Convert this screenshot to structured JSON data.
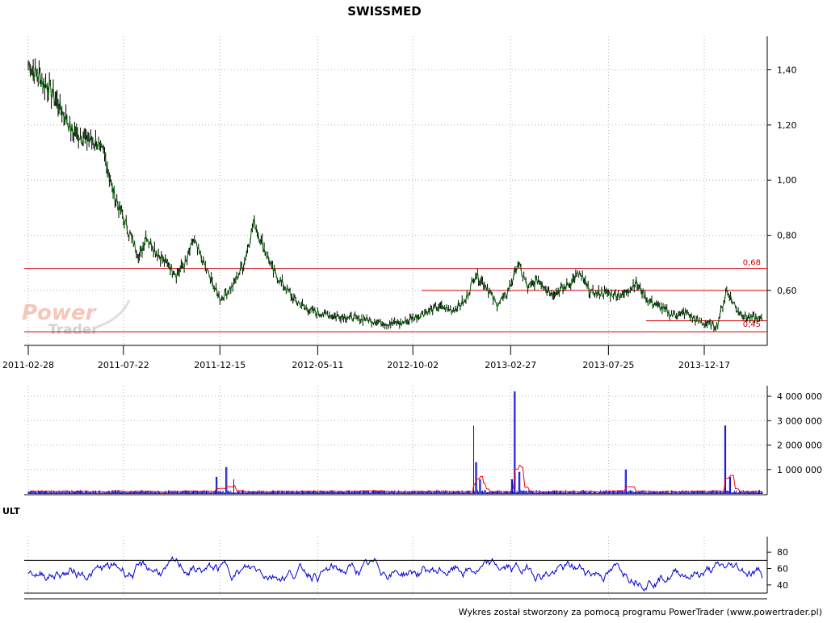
{
  "chart_data": [
    {
      "type": "candlestick",
      "panel": "price",
      "title": "SWISSMED",
      "x_ticks": [
        "2011-02-28",
        "2011-07-22",
        "2011-12-15",
        "2012-05-11",
        "2012-10-02",
        "2013-02-27",
        "2013-07-25",
        "2013-12-17"
      ],
      "y_ticks": [
        "1,40",
        "1,20",
        "1,00",
        "0,80",
        "0,60"
      ],
      "ylim": [
        0.43,
        1.46
      ],
      "grid": true,
      "close_series": [
        [
          "2011-02-28",
          1.42
        ],
        [
          "2011-03-15",
          1.38
        ],
        [
          "2011-04-01",
          1.33
        ],
        [
          "2011-04-20",
          1.25
        ],
        [
          "2011-05-05",
          1.18
        ],
        [
          "2011-05-25",
          1.15
        ],
        [
          "2011-06-10",
          1.14
        ],
        [
          "2011-06-25",
          1.08
        ],
        [
          "2011-07-05",
          0.97
        ],
        [
          "2011-07-22",
          0.86
        ],
        [
          "2011-08-05",
          0.78
        ],
        [
          "2011-08-15",
          0.72
        ],
        [
          "2011-08-25",
          0.8
        ],
        [
          "2011-09-10",
          0.74
        ],
        [
          "2011-09-25",
          0.7
        ],
        [
          "2011-10-10",
          0.66
        ],
        [
          "2011-10-25",
          0.7
        ],
        [
          "2011-11-05",
          0.78
        ],
        [
          "2011-11-20",
          0.7
        ],
        [
          "2011-12-05",
          0.62
        ],
        [
          "2011-12-15",
          0.57
        ],
        [
          "2012-01-05",
          0.62
        ],
        [
          "2012-01-20",
          0.7
        ],
        [
          "2012-02-05",
          0.85
        ],
        [
          "2012-02-20",
          0.75
        ],
        [
          "2012-03-05",
          0.67
        ],
        [
          "2012-03-20",
          0.62
        ],
        [
          "2012-04-05",
          0.57
        ],
        [
          "2012-04-25",
          0.53
        ],
        [
          "2012-05-11",
          0.52
        ],
        [
          "2012-06-05",
          0.51
        ],
        [
          "2012-07-05",
          0.5
        ],
        [
          "2012-08-05",
          0.49
        ],
        [
          "2012-08-25",
          0.48
        ],
        [
          "2012-09-15",
          0.48
        ],
        [
          "2012-10-02",
          0.5
        ],
        [
          "2012-10-20",
          0.52
        ],
        [
          "2012-11-10",
          0.54
        ],
        [
          "2012-12-01",
          0.53
        ],
        [
          "2012-12-20",
          0.56
        ],
        [
          "2013-01-05",
          0.66
        ],
        [
          "2013-01-20",
          0.62
        ],
        [
          "2013-02-05",
          0.55
        ],
        [
          "2013-02-20",
          0.58
        ],
        [
          "2013-02-27",
          0.62
        ],
        [
          "2013-03-10",
          0.7
        ],
        [
          "2013-03-25",
          0.61
        ],
        [
          "2013-04-10",
          0.64
        ],
        [
          "2013-04-30",
          0.59
        ],
        [
          "2013-05-20",
          0.61
        ],
        [
          "2013-06-10",
          0.66
        ],
        [
          "2013-06-30",
          0.59
        ],
        [
          "2013-07-25",
          0.59
        ],
        [
          "2013-08-15",
          0.58
        ],
        [
          "2013-09-05",
          0.63
        ],
        [
          "2013-09-20",
          0.57
        ],
        [
          "2013-10-10",
          0.54
        ],
        [
          "2013-10-30",
          0.51
        ],
        [
          "2013-11-20",
          0.52
        ],
        [
          "2013-12-05",
          0.49
        ],
        [
          "2013-12-17",
          0.48
        ],
        [
          "2014-01-05",
          0.47
        ],
        [
          "2014-01-20",
          0.6
        ],
        [
          "2014-02-05",
          0.53
        ],
        [
          "2014-02-20",
          0.5
        ],
        [
          "2014-03-05",
          0.5
        ],
        [
          "2014-03-15",
          0.49
        ]
      ],
      "levels": [
        {
          "value": 0.68,
          "label": "0,68",
          "color": "#d00000"
        },
        {
          "value": 0.6,
          "label": "",
          "color": "#d00000"
        },
        {
          "value": 0.49,
          "label": "",
          "color": "#d00000"
        },
        {
          "value": 0.45,
          "label": "0,45",
          "color": "#d00000"
        }
      ],
      "colors": {
        "close": "#006000",
        "candle": "#000000"
      }
    },
    {
      "type": "bar",
      "panel": "volume",
      "y_ticks": [
        "4 000 000",
        "3 000 000",
        "2 000 000",
        "1 000 000"
      ],
      "ylim": [
        0,
        4200000
      ],
      "grid": true,
      "spikes": [
        [
          "2011-12-10",
          700000
        ],
        [
          "2011-12-25",
          1100000
        ],
        [
          "2012-01-05",
          600000
        ],
        [
          "2013-01-02",
          2800000
        ],
        [
          "2013-01-06",
          1300000
        ],
        [
          "2013-01-12",
          600000
        ],
        [
          "2013-03-01",
          600000
        ],
        [
          "2013-03-05",
          4200000
        ],
        [
          "2013-03-12",
          900000
        ],
        [
          "2013-08-20",
          1000000
        ],
        [
          "2014-01-18",
          2800000
        ],
        [
          "2014-01-25",
          700000
        ]
      ],
      "colors": {
        "bars": "#0000d0",
        "average": "#ff0000"
      }
    },
    {
      "type": "line",
      "panel": "indicator",
      "title": "ULT",
      "y_ticks": [
        "80",
        "60",
        "40"
      ],
      "ylim": [
        30,
        92
      ],
      "levels": [
        70,
        30
      ],
      "colors": {
        "line": "#0000d0"
      }
    }
  ],
  "footer": "Wykres został stworzony za pomocą programu PowerTrader (www.powertrader.pl)",
  "watermark": {
    "line1": "Power",
    "line2": "Trader"
  }
}
